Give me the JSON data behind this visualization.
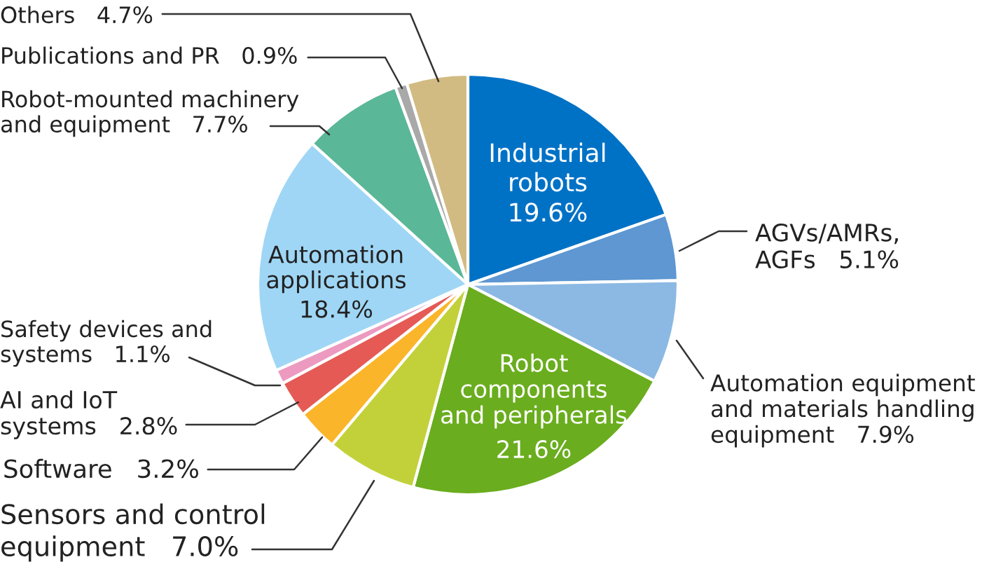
{
  "chart_data": {
    "type": "pie",
    "categories": [
      "Industrial\nrobots",
      "AGVs/AMRs,\nAGFs",
      "Automation equipment\nand materials handling\nequipment",
      "Robot\ncomponents\nand peripherals",
      "Sensors and control\nequipment",
      "Software",
      "AI and IoT\nsystems",
      "Safety devices and\nsystems",
      "Automation\napplications",
      "Robot-mounted machinery\nand equipment",
      "Publications and PR",
      "Others"
    ],
    "values": [
      19.6,
      5.1,
      7.9,
      21.6,
      7.0,
      3.2,
      2.8,
      1.1,
      18.4,
      7.7,
      0.9,
      4.7
    ],
    "value_labels": [
      "19.6%",
      "5.1%",
      "7.9%",
      "21.6%",
      "7.0%",
      "3.2%",
      "2.8%",
      "1.1%",
      "18.4%",
      "7.7%",
      "0.9%",
      "4.7%"
    ],
    "colors": [
      "#0072c6",
      "#5e97d2",
      "#8cb9e3",
      "#6aad1e",
      "#c2d13a",
      "#fbb52a",
      "#e55a55",
      "#ec9ac0",
      "#9fd6f5",
      "#5ab797",
      "#a9a9a9",
      "#d2bb82"
    ]
  }
}
